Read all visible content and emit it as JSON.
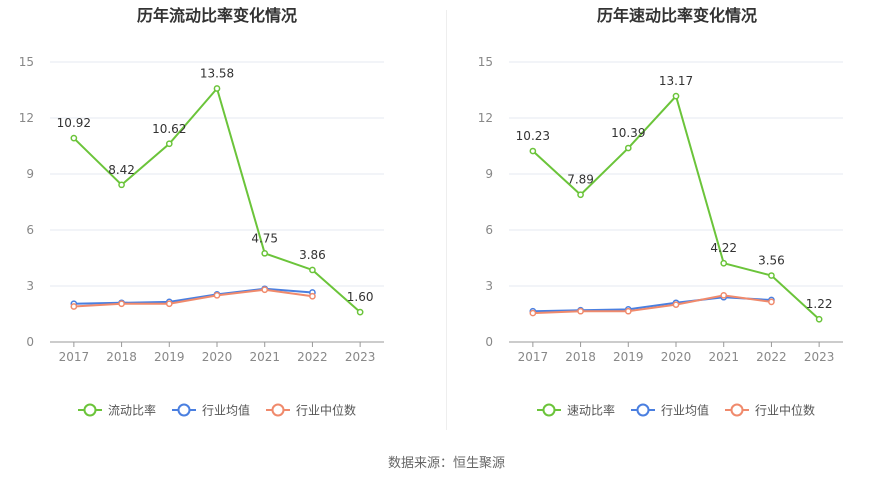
{
  "source_text": "数据来源：恒生聚源",
  "chart_data": [
    {
      "type": "line",
      "title": "历年流动比率变化情况",
      "categories": [
        "2017",
        "2018",
        "2019",
        "2020",
        "2021",
        "2022",
        "2023"
      ],
      "y_ticks": [
        "0",
        "3",
        "6",
        "9",
        "12",
        "15"
      ],
      "ylim": [
        0,
        15
      ],
      "grid": true,
      "legend_position": "bottom",
      "series": [
        {
          "name": "流动比率",
          "color": "#6bc43a",
          "values": [
            10.92,
            8.42,
            10.62,
            13.58,
            4.75,
            3.86,
            1.6
          ],
          "labels": [
            "10.92",
            "8.42",
            "10.62",
            "13.58",
            "4.75",
            "3.86",
            "1.60"
          ]
        },
        {
          "name": "行业均值",
          "color": "#4a7fe0",
          "values": [
            2.05,
            2.1,
            2.15,
            2.55,
            2.85,
            2.65,
            null
          ]
        },
        {
          "name": "行业中位数",
          "color": "#f08a6c",
          "values": [
            1.9,
            2.05,
            2.05,
            2.5,
            2.8,
            2.45,
            null
          ]
        }
      ]
    },
    {
      "type": "line",
      "title": "历年速动比率变化情况",
      "categories": [
        "2017",
        "2018",
        "2019",
        "2020",
        "2021",
        "2022",
        "2023"
      ],
      "y_ticks": [
        "0",
        "3",
        "6",
        "9",
        "12",
        "15"
      ],
      "ylim": [
        0,
        15
      ],
      "grid": true,
      "legend_position": "bottom",
      "series": [
        {
          "name": "速动比率",
          "color": "#6bc43a",
          "values": [
            10.23,
            7.89,
            10.39,
            13.17,
            4.22,
            3.56,
            1.22
          ],
          "labels": [
            "10.23",
            "7.89",
            "10.39",
            "13.17",
            "4.22",
            "3.56",
            "1.22"
          ]
        },
        {
          "name": "行业均值",
          "color": "#4a7fe0",
          "values": [
            1.65,
            1.7,
            1.75,
            2.1,
            2.4,
            2.25,
            null
          ]
        },
        {
          "name": "行业中位数",
          "color": "#f08a6c",
          "values": [
            1.55,
            1.65,
            1.65,
            2.0,
            2.5,
            2.15,
            null
          ]
        }
      ]
    }
  ]
}
